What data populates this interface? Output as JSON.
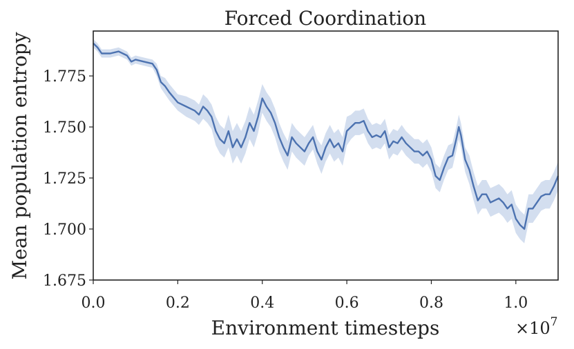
{
  "chart_data": {
    "type": "line",
    "title": "Forced Coordination",
    "xlabel": "Environment timesteps",
    "ylabel": "Mean population entropy",
    "x_multiplier_text": "×10",
    "x_multiplier_exp": "7",
    "xlim": [
      0.0,
      1.1
    ],
    "ylim": [
      1.675,
      1.797
    ],
    "xticks": [
      "0.0",
      "0.2",
      "0.4",
      "0.6",
      "0.8",
      "1.0"
    ],
    "xtick_values": [
      0.0,
      0.2,
      0.4,
      0.6,
      0.8,
      1.0
    ],
    "yticks": [
      "1.675",
      "1.700",
      "1.725",
      "1.750",
      "1.775"
    ],
    "ytick_values": [
      1.675,
      1.7,
      1.725,
      1.75,
      1.775
    ],
    "grid": false,
    "legend": "none",
    "colors": {
      "line": "#4c72b0",
      "band": "#aec3e2",
      "axis": "#222222"
    },
    "series": [
      {
        "x": [
          0.0,
          0.01,
          0.02,
          0.04,
          0.06,
          0.08,
          0.09,
          0.1,
          0.12,
          0.14,
          0.15,
          0.16,
          0.17,
          0.18,
          0.2,
          0.22,
          0.24,
          0.25,
          0.26,
          0.27,
          0.28,
          0.29,
          0.3,
          0.31,
          0.32,
          0.33,
          0.34,
          0.35,
          0.36,
          0.37,
          0.38,
          0.39,
          0.4,
          0.41,
          0.42,
          0.43,
          0.44,
          0.45,
          0.46,
          0.47,
          0.48,
          0.49,
          0.5,
          0.51,
          0.52,
          0.53,
          0.54,
          0.55,
          0.56,
          0.57,
          0.58,
          0.59,
          0.6,
          0.61,
          0.62,
          0.63,
          0.64,
          0.65,
          0.66,
          0.67,
          0.68,
          0.69,
          0.7,
          0.71,
          0.72,
          0.73,
          0.74,
          0.75,
          0.76,
          0.77,
          0.78,
          0.79,
          0.8,
          0.81,
          0.82,
          0.83,
          0.84,
          0.85,
          0.86,
          0.865,
          0.87,
          0.88,
          0.89,
          0.9,
          0.91,
          0.92,
          0.93,
          0.94,
          0.95,
          0.96,
          0.97,
          0.98,
          0.99,
          1.0,
          1.01,
          1.02,
          1.03,
          1.04,
          1.05,
          1.06,
          1.07,
          1.08,
          1.09,
          1.1
        ],
        "y": [
          1.791,
          1.789,
          1.786,
          1.786,
          1.787,
          1.785,
          1.782,
          1.783,
          1.782,
          1.781,
          1.778,
          1.772,
          1.77,
          1.767,
          1.762,
          1.76,
          1.758,
          1.756,
          1.76,
          1.758,
          1.755,
          1.748,
          1.744,
          1.742,
          1.748,
          1.74,
          1.744,
          1.74,
          1.745,
          1.752,
          1.748,
          1.755,
          1.764,
          1.76,
          1.757,
          1.752,
          1.745,
          1.74,
          1.736,
          1.745,
          1.742,
          1.74,
          1.738,
          1.742,
          1.745,
          1.738,
          1.734,
          1.74,
          1.744,
          1.74,
          1.742,
          1.738,
          1.748,
          1.75,
          1.752,
          1.752,
          1.753,
          1.748,
          1.745,
          1.746,
          1.745,
          1.748,
          1.74,
          1.743,
          1.742,
          1.745,
          1.742,
          1.74,
          1.738,
          1.738,
          1.736,
          1.738,
          1.734,
          1.726,
          1.724,
          1.73,
          1.735,
          1.736,
          1.745,
          1.75,
          1.746,
          1.734,
          1.729,
          1.721,
          1.714,
          1.717,
          1.717,
          1.713,
          1.714,
          1.715,
          1.713,
          1.71,
          1.712,
          1.705,
          1.702,
          1.7,
          1.71,
          1.71,
          1.713,
          1.716,
          1.717,
          1.717,
          1.721,
          1.726
        ],
        "band": [
          0.002,
          0.002,
          0.002,
          0.002,
          0.002,
          0.002,
          0.002,
          0.002,
          0.002,
          0.002,
          0.003,
          0.003,
          0.004,
          0.004,
          0.004,
          0.005,
          0.005,
          0.005,
          0.006,
          0.006,
          0.006,
          0.007,
          0.007,
          0.007,
          0.008,
          0.008,
          0.008,
          0.008,
          0.008,
          0.008,
          0.008,
          0.008,
          0.007,
          0.007,
          0.007,
          0.007,
          0.007,
          0.007,
          0.007,
          0.007,
          0.007,
          0.007,
          0.007,
          0.006,
          0.006,
          0.006,
          0.007,
          0.007,
          0.007,
          0.007,
          0.007,
          0.007,
          0.007,
          0.006,
          0.006,
          0.006,
          0.006,
          0.006,
          0.006,
          0.006,
          0.006,
          0.006,
          0.006,
          0.006,
          0.006,
          0.006,
          0.006,
          0.006,
          0.006,
          0.006,
          0.006,
          0.006,
          0.006,
          0.006,
          0.006,
          0.006,
          0.006,
          0.006,
          0.006,
          0.006,
          0.006,
          0.006,
          0.007,
          0.007,
          0.007,
          0.007,
          0.007,
          0.007,
          0.007,
          0.007,
          0.007,
          0.007,
          0.007,
          0.007,
          0.007,
          0.007,
          0.007,
          0.007,
          0.007,
          0.007,
          0.007,
          0.007,
          0.007,
          0.007
        ]
      }
    ]
  }
}
